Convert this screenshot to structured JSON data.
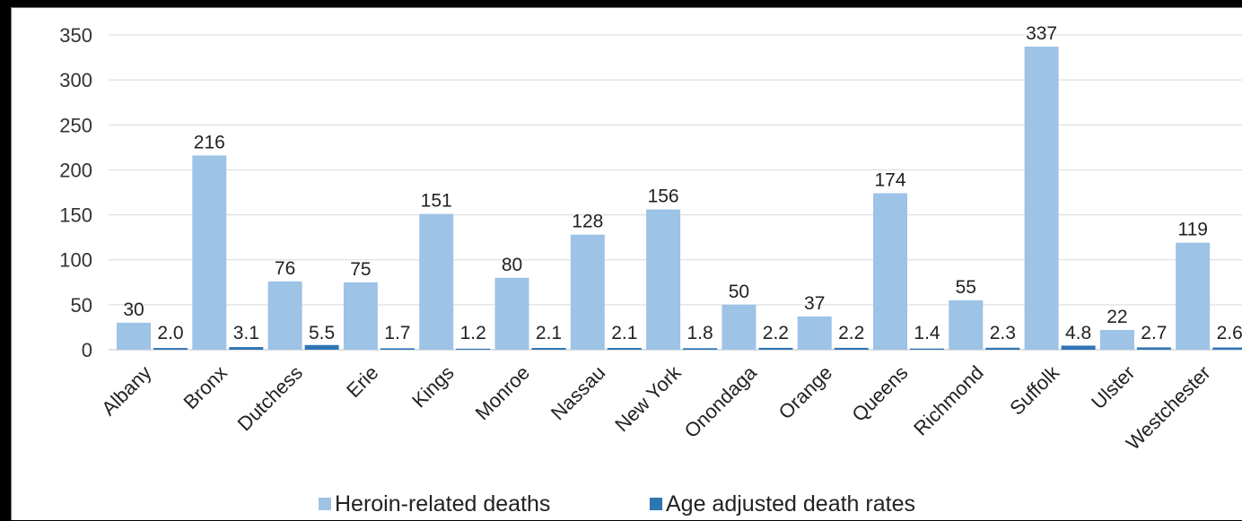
{
  "chart_data": {
    "type": "bar",
    "categories": [
      "Albany",
      "Bronx",
      "Dutchess",
      "Erie",
      "Kings",
      "Monroe",
      "Nassau",
      "New York",
      "Onondaga",
      "Orange",
      "Queens",
      "Richmond",
      "Suffolk",
      "Ulster",
      "Westchester"
    ],
    "series": [
      {
        "name": "Heroin-related deaths",
        "values": [
          30,
          216,
          76,
          75,
          151,
          80,
          128,
          156,
          50,
          37,
          174,
          55,
          337,
          22,
          119
        ],
        "labels": [
          "30",
          "216",
          "76",
          "75",
          "151",
          "80",
          "128",
          "156",
          "50",
          "37",
          "174",
          "55",
          "337",
          "22",
          "119"
        ],
        "color": "#9dc3e6"
      },
      {
        "name": "Age adjusted death rates",
        "values": [
          2.0,
          3.1,
          5.5,
          1.7,
          1.2,
          2.1,
          2.1,
          1.8,
          2.2,
          2.2,
          1.4,
          2.3,
          4.8,
          2.7,
          2.6
        ],
        "labels": [
          "2.0",
          "3.1",
          "5.5",
          "1.7",
          "1.2",
          "2.1",
          "2.1",
          "1.8",
          "2.2",
          "2.2",
          "1.4",
          "2.3",
          "4.8",
          "2.7",
          "2.6"
        ],
        "color": "#2e75b6"
      }
    ],
    "yticks": [
      "0",
      "50",
      "100",
      "150",
      "200",
      "250",
      "300",
      "350"
    ],
    "ylim": [
      0,
      350
    ],
    "grid": true,
    "legend": "bottom",
    "xlabel": "",
    "ylabel": "",
    "title": ""
  }
}
